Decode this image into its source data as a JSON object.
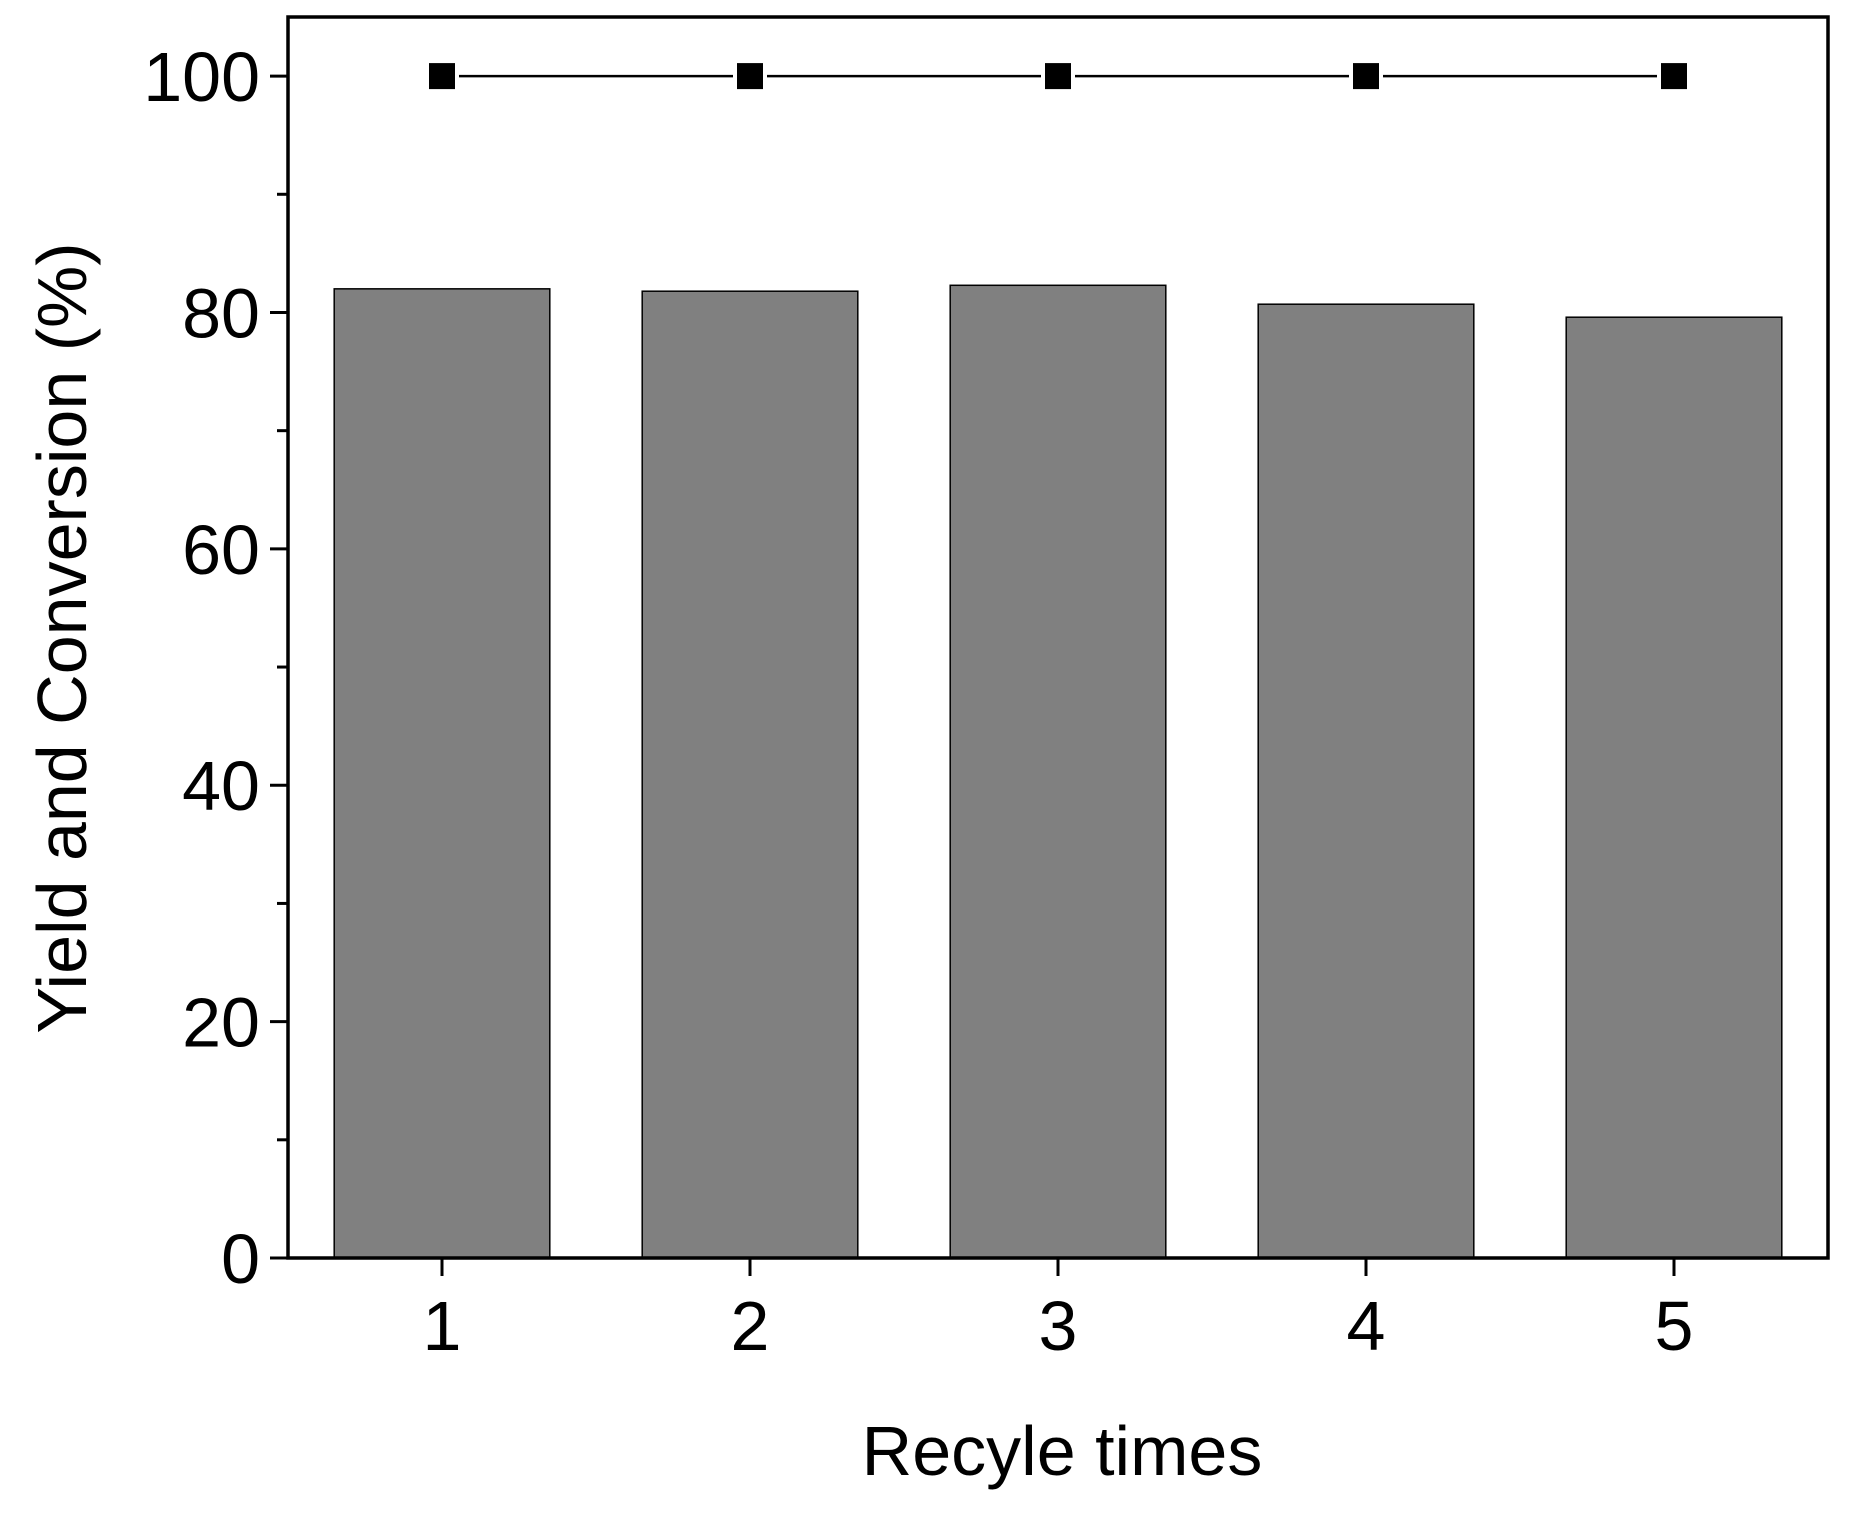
{
  "chart_data": {
    "type": "bar",
    "x_label": "Recyle times",
    "y_label": "Yield and Conversion (%)",
    "categories": [
      "1",
      "2",
      "3",
      "4",
      "5"
    ],
    "series": [
      {
        "type": "bar",
        "color": "#808080",
        "values": [
          82.0,
          81.8,
          82.3,
          80.7,
          79.6
        ]
      },
      {
        "type": "line",
        "color": "#000000",
        "values": [
          100,
          100,
          100,
          100,
          100
        ]
      }
    ],
    "ylim": [
      0,
      105
    ],
    "yticks": [
      0,
      20,
      40,
      60,
      80,
      100
    ],
    "yminorticks": [
      10,
      30,
      50,
      70,
      90
    ],
    "grid": false
  }
}
